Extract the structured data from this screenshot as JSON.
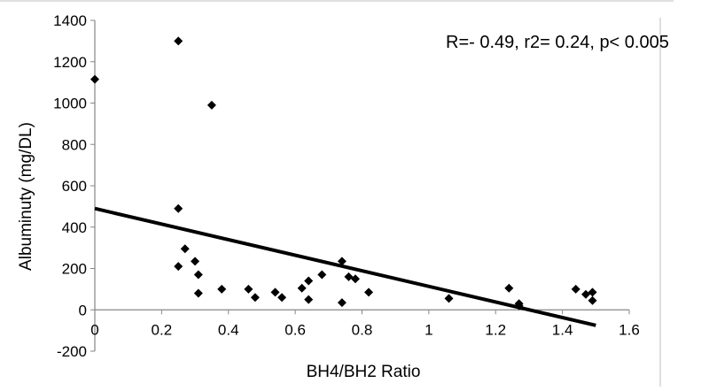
{
  "chart_data": {
    "type": "scatter",
    "title": "",
    "xlabel": "BH4/BH2 Ratio",
    "ylabel": "Albuminuty (mg/DL)",
    "xlim": [
      0,
      1.6
    ],
    "ylim": [
      -200,
      1400
    ],
    "x_ticks": [
      "0",
      "0.2",
      "0.4",
      "0.6",
      "0.8",
      "1",
      "1.2",
      "1.4",
      "1.6"
    ],
    "y_ticks": [
      "-200",
      "0",
      "200",
      "400",
      "600",
      "800",
      "1000",
      "1200",
      "1400"
    ],
    "grid": false,
    "legend": "none",
    "annotation": "R=- 0.49, r2= 0.24, p< 0.005",
    "marker": "diamond",
    "marker_color": "#000000",
    "points": [
      {
        "x": 0.0,
        "y": 1115
      },
      {
        "x": 0.25,
        "y": 1300
      },
      {
        "x": 0.35,
        "y": 990
      },
      {
        "x": 0.25,
        "y": 490
      },
      {
        "x": 0.25,
        "y": 210
      },
      {
        "x": 0.27,
        "y": 295
      },
      {
        "x": 0.3,
        "y": 235
      },
      {
        "x": 0.31,
        "y": 170
      },
      {
        "x": 0.31,
        "y": 80
      },
      {
        "x": 0.38,
        "y": 100
      },
      {
        "x": 0.46,
        "y": 100
      },
      {
        "x": 0.48,
        "y": 60
      },
      {
        "x": 0.54,
        "y": 85
      },
      {
        "x": 0.56,
        "y": 60
      },
      {
        "x": 0.62,
        "y": 105
      },
      {
        "x": 0.64,
        "y": 140
      },
      {
        "x": 0.64,
        "y": 50
      },
      {
        "x": 0.68,
        "y": 170
      },
      {
        "x": 0.74,
        "y": 235
      },
      {
        "x": 0.74,
        "y": 35
      },
      {
        "x": 0.76,
        "y": 160
      },
      {
        "x": 0.78,
        "y": 150
      },
      {
        "x": 0.82,
        "y": 85
      },
      {
        "x": 1.06,
        "y": 55
      },
      {
        "x": 1.24,
        "y": 105
      },
      {
        "x": 1.27,
        "y": 30
      },
      {
        "x": 1.27,
        "y": 20
      },
      {
        "x": 1.44,
        "y": 100
      },
      {
        "x": 1.47,
        "y": 75
      },
      {
        "x": 1.49,
        "y": 85
      },
      {
        "x": 1.49,
        "y": 45
      }
    ],
    "trendline": {
      "x": [
        0,
        1.5
      ],
      "y": [
        490,
        -75
      ],
      "color": "#000000"
    }
  }
}
